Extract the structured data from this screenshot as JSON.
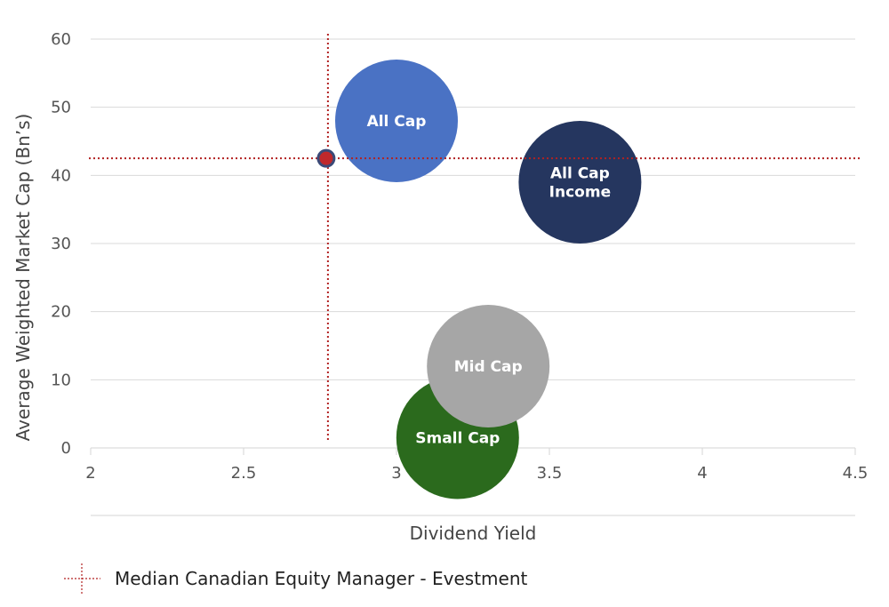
{
  "chart_data": {
    "type": "bubble",
    "xlabel": "Dividend Yield",
    "ylabel": "Average Weighted Market Cap (Bn’s)",
    "xlim": [
      2,
      4.5
    ],
    "ylim": [
      0,
      60
    ],
    "x_ticks": [
      "2",
      "2.5",
      "3",
      "3.5",
      "4",
      "4.5"
    ],
    "y_ticks": [
      "0",
      "10",
      "20",
      "30",
      "40",
      "50",
      "60"
    ],
    "grid": "horizontal",
    "series": [
      {
        "name": "All Cap",
        "label_lines": [
          "All Cap"
        ],
        "x": 3.0,
        "y": 48,
        "color": "#4a72c4"
      },
      {
        "name": "All Cap Income",
        "label_lines": [
          "All Cap",
          "Income"
        ],
        "x": 3.6,
        "y": 39,
        "color": "#25365f"
      },
      {
        "name": "Mid Cap",
        "label_lines": [
          "Mid Cap"
        ],
        "x": 3.3,
        "y": 12,
        "color": "#a6a6a6"
      },
      {
        "name": "Small Cap",
        "label_lines": [
          "Small Cap"
        ],
        "x": 3.2,
        "y": 1.5,
        "color": "#2b6a1d"
      }
    ],
    "median_point": {
      "x": 2.77,
      "y": 42.5,
      "color": "#c0282b",
      "outline": "#3b4a78"
    },
    "reference_line_color": "#b22222",
    "legend": {
      "position": "bottom-left",
      "label": "Median Canadian Equity Manager - Evestment"
    }
  }
}
